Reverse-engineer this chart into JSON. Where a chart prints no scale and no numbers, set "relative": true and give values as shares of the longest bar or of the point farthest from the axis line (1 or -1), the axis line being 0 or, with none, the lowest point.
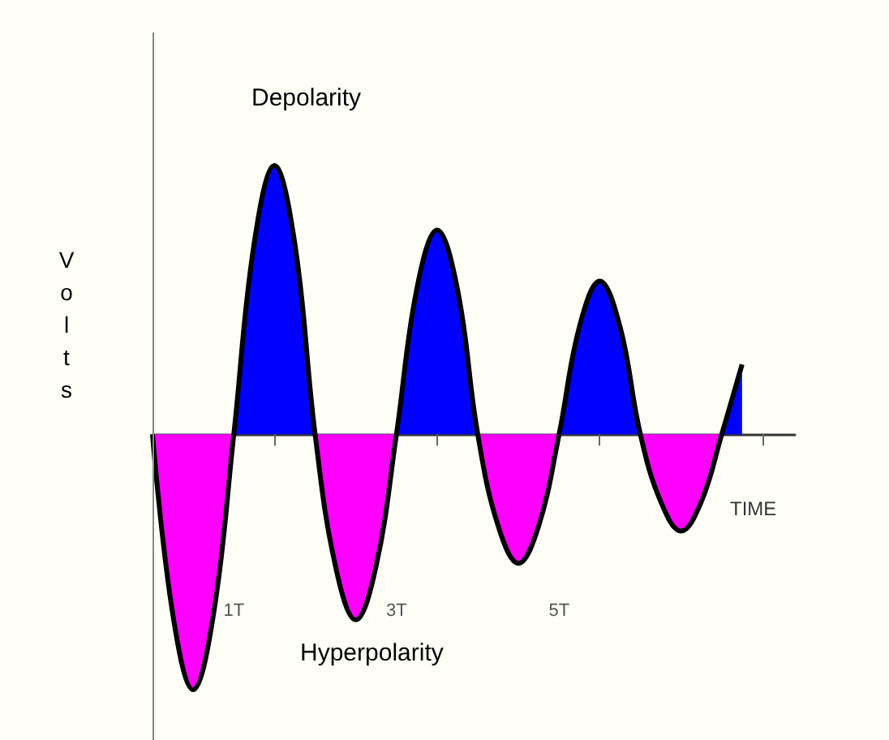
{
  "chart_data": {
    "type": "area",
    "relative": true,
    "title": "Depolarity",
    "ylabel": "Volts",
    "xlabel": "TIME",
    "annotations": [
      "Hyperpolarity"
    ],
    "x": [
      0,
      0.25,
      0.5,
      0.75,
      1,
      1.25,
      1.5,
      1.75,
      2,
      2.25,
      2.5,
      2.75,
      3,
      3.25,
      3.5,
      3.75,
      4,
      4.25,
      4.5,
      4.75,
      5,
      5.25,
      5.5,
      5.75,
      6,
      6.25,
      6.5,
      6.75,
      7,
      7.25
    ],
    "series": [
      {
        "color": "#000000",
        "values": [
          0,
          -0.67,
          -0.95,
          -0.67,
          0,
          0.71,
          1,
          0.71,
          0,
          -0.49,
          -0.69,
          -0.49,
          0,
          0.54,
          0.76,
          0.54,
          0,
          -0.34,
          -0.48,
          -0.34,
          0,
          0.4,
          0.57,
          0.4,
          0,
          -0.25,
          -0.36,
          -0.25,
          0,
          0.26
        ],
        "colors": [
          "#ff00ff",
          "#ff00ff",
          "#ff00ff",
          "#ff00ff",
          "#0000ff",
          "#0000ff",
          "#0000ff",
          "#0000ff",
          "#ff00ff",
          "#ff00ff",
          "#ff00ff",
          "#ff00ff",
          "#0000ff",
          "#0000ff",
          "#0000ff",
          "#0000ff",
          "#ff00ff",
          "#ff00ff",
          "#ff00ff",
          "#ff00ff",
          "#0000ff",
          "#0000ff",
          "#0000ff",
          "#0000ff",
          "#ff00ff",
          "#ff00ff",
          "#ff00ff",
          "#ff00ff",
          "#0000ff",
          "#0000ff"
        ]
      }
    ],
    "xlim": [
      0,
      7.9
    ],
    "xticks": [
      {
        "value": 0.5,
        "label": null
      },
      {
        "value": 1,
        "label": "1T"
      },
      {
        "value": 1.5,
        "label": null
      },
      {
        "value": 2.5,
        "label": null
      },
      {
        "value": 3,
        "label": "3T"
      },
      {
        "value": 3.5,
        "label": null
      },
      {
        "value": 4.5,
        "label": null
      },
      {
        "value": 5,
        "label": "5T"
      },
      {
        "value": 5.5,
        "label": null
      },
      {
        "value": 6.5,
        "label": null
      },
      {
        "value": 7.5,
        "label": null
      }
    ],
    "tick_labels": "x",
    "grid": false
  }
}
